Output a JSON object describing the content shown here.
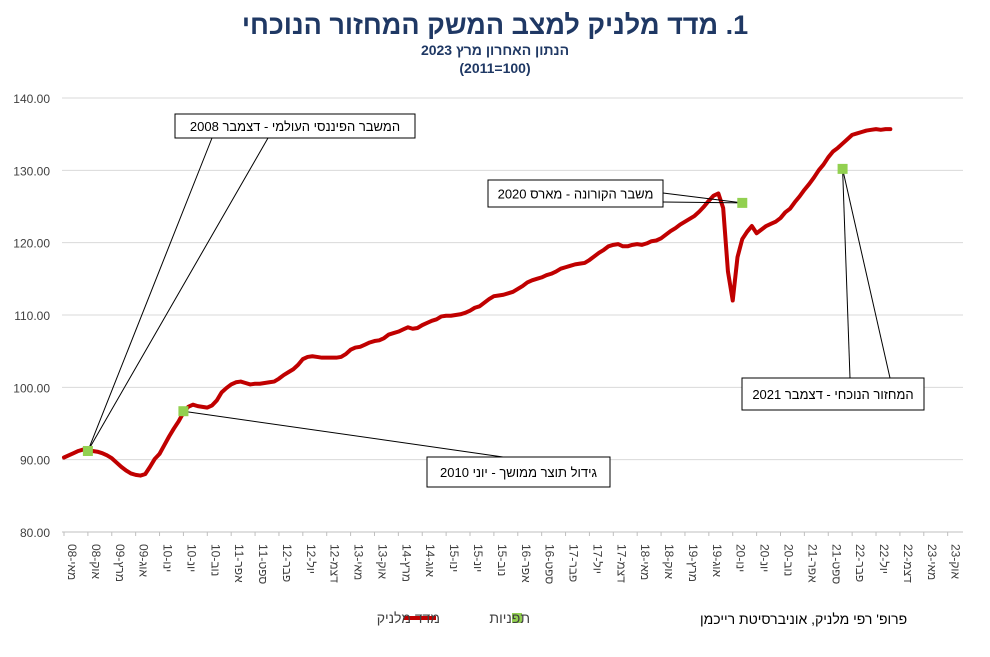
{
  "chart_data": {
    "type": "line",
    "title": "1. מדד מלניק למצב המשק המחזור הנוכחי",
    "subtitle": "הנתון האחרון מרץ 2023",
    "subtitle2": "(100=2011)",
    "ylim": [
      80,
      140
    ],
    "yticks": [
      "80.00",
      "90.00",
      "100.00",
      "110.00",
      "120.00",
      "130.00",
      "140.00"
    ],
    "grid": true,
    "legend_position": "bottom",
    "colors": {
      "line": "#c00000",
      "turning_points": "#92d050",
      "title": "#1f3864",
      "grid": "#d9d9d9"
    },
    "x_labels": [
      "מאי-08",
      "אוק-08",
      "מרץ-09",
      "אוג-09",
      "ינו-10",
      "יונ-10",
      "נוב-10",
      "אפר-11",
      "ספט-11",
      "פבר-12",
      "יול-12",
      "דצמ-12",
      "מאי-13",
      "אוק-13",
      "מרץ-14",
      "אוג-14",
      "ינו-15",
      "יונ-15",
      "נוב-15",
      "אפר-16",
      "ספט-16",
      "פבר-17",
      "יול-17",
      "דצמ-17",
      "מאי-18",
      "אוק-18",
      "מרץ-19",
      "אוג-19",
      "ינו-20",
      "יונ-20",
      "נוב-20",
      "אפר-21",
      "ספט-21",
      "פבר-22",
      "יול-22",
      "דצמ-22",
      "מאי-23",
      "אוק-23"
    ],
    "series": [
      {
        "name": "מדד מלניק",
        "start": "2008-05",
        "frequency": "monthly",
        "values": [
          90.3,
          90.6,
          90.9,
          91.2,
          91.4,
          91.3,
          91.2,
          91.1,
          90.9,
          90.6,
          90.2,
          89.6,
          89.0,
          88.5,
          88.1,
          87.9,
          87.8,
          88.0,
          89.0,
          90.1,
          90.8,
          92.0,
          93.2,
          94.3,
          95.3,
          96.5,
          97.3,
          97.6,
          97.4,
          97.3,
          97.2,
          97.5,
          98.2,
          99.3,
          99.9,
          100.4,
          100.7,
          100.8,
          100.6,
          100.4,
          100.5,
          100.5,
          100.6,
          100.7,
          100.8,
          101.2,
          101.7,
          102.1,
          102.5,
          103.1,
          103.9,
          104.2,
          104.3,
          104.2,
          104.1,
          104.1,
          104.1,
          104.1,
          104.2,
          104.6,
          105.2,
          105.5,
          105.6,
          105.9,
          106.2,
          106.4,
          106.5,
          106.8,
          107.3,
          107.5,
          107.7,
          108.0,
          108.3,
          108.1,
          108.2,
          108.6,
          108.9,
          109.2,
          109.4,
          109.8,
          109.9,
          109.9,
          110.0,
          110.1,
          110.3,
          110.6,
          111.0,
          111.2,
          111.7,
          112.2,
          112.6,
          112.7,
          112.8,
          113.0,
          113.2,
          113.6,
          114.0,
          114.5,
          114.8,
          115.0,
          115.2,
          115.5,
          115.7,
          116.0,
          116.4,
          116.6,
          116.8,
          117.0,
          117.1,
          117.2,
          117.6,
          118.1,
          118.6,
          119.0,
          119.5,
          119.7,
          119.8,
          119.5,
          119.5,
          119.7,
          119.8,
          119.7,
          119.9,
          120.2,
          120.3,
          120.6,
          121.1,
          121.6,
          122.0,
          122.5,
          122.9,
          123.3,
          123.7,
          124.3,
          125.0,
          125.8,
          126.5,
          126.8,
          124.8,
          116.0,
          112.0,
          118.0,
          120.5,
          121.5,
          122.3,
          121.3,
          121.8,
          122.3,
          122.6,
          122.9,
          123.4,
          124.2,
          124.7,
          125.6,
          126.4,
          127.3,
          128.1,
          129.0,
          130.0,
          130.8,
          131.8,
          132.6,
          133.1,
          133.7,
          134.3,
          134.9,
          135.1,
          135.3,
          135.5,
          135.6,
          135.7,
          135.6,
          135.7,
          135.7
        ]
      },
      {
        "name": "תפניות",
        "points": [
          {
            "x": "2008-10",
            "y": 91.2
          },
          {
            "x": "2010-06",
            "y": 96.7
          },
          {
            "x": "2020-03",
            "y": 125.5
          },
          {
            "x": "2021-12",
            "y": 130.2
          }
        ]
      }
    ],
    "annotations": [
      {
        "text": "המשבר הפיננסי העולמי - דצמבר 2008",
        "target": "2008-10"
      },
      {
        "text": "גידול תוצר ממושך - יוני 2010",
        "target": "2010-06"
      },
      {
        "text": "משבר הקורונה - מארס 2020",
        "target": "2020-03"
      },
      {
        "text": "המחזור הנוכחי - דצמבר 2021",
        "target": "2021-12"
      }
    ]
  },
  "credit": "פרופ' רפי מלניק, אוניברסיטת רייכמן"
}
